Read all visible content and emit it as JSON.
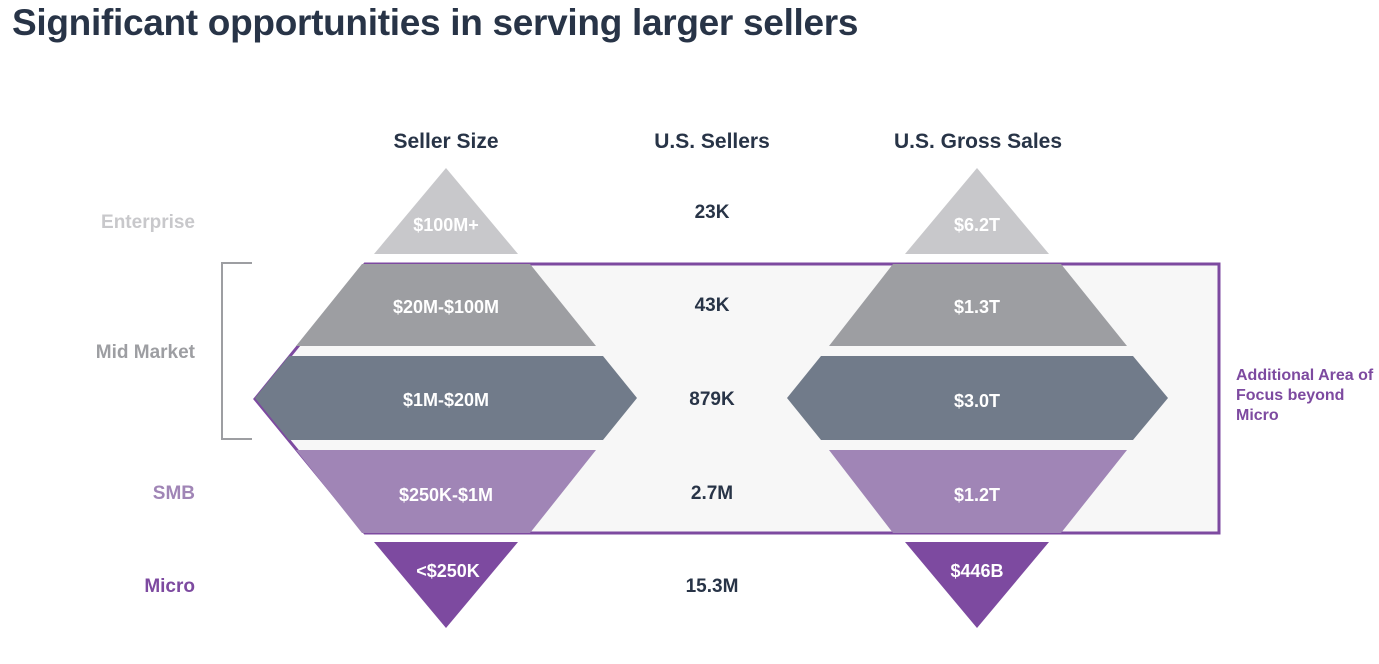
{
  "title": "Significant opportunities in serving larger sellers",
  "columns": {
    "seller_size": "Seller Size",
    "us_sellers": "U.S. Sellers",
    "us_gross_sales": "U.S. Gross Sales"
  },
  "segments": {
    "enterprise": "Enterprise",
    "mid_market": "Mid Market",
    "smb": "SMB",
    "micro": "Micro"
  },
  "tiers": [
    {
      "segment": "Enterprise",
      "seller_size": "$100M+",
      "us_sellers": "23K",
      "us_gross_sales": "$6.2T"
    },
    {
      "segment": "Mid Market",
      "seller_size": "$20M-$100M",
      "us_sellers": "43K",
      "us_gross_sales": "$1.3T"
    },
    {
      "segment": "Mid Market",
      "seller_size": "$1M-$20M",
      "us_sellers": "879K",
      "us_gross_sales": "$3.0T"
    },
    {
      "segment": "SMB",
      "seller_size": "$250K-$1M",
      "us_sellers": "2.7M",
      "us_gross_sales": "$1.2T"
    },
    {
      "segment": "Micro",
      "seller_size": "<$250K",
      "us_sellers": "15.3M",
      "us_gross_sales": "$446B"
    }
  ],
  "focus_note": "Additional Area of Focus beyond Micro",
  "colors": {
    "title": "#283447",
    "enterprise": "#c8c8cb",
    "mid_upper": "#9d9ea2",
    "mid_lower": "#717b8a",
    "smb": "#a085b6",
    "micro": "#7d4aa0",
    "focus_border": "#7d4aa0",
    "focus_fill": "#f7f7f7",
    "bracket": "#9d9ea2"
  }
}
